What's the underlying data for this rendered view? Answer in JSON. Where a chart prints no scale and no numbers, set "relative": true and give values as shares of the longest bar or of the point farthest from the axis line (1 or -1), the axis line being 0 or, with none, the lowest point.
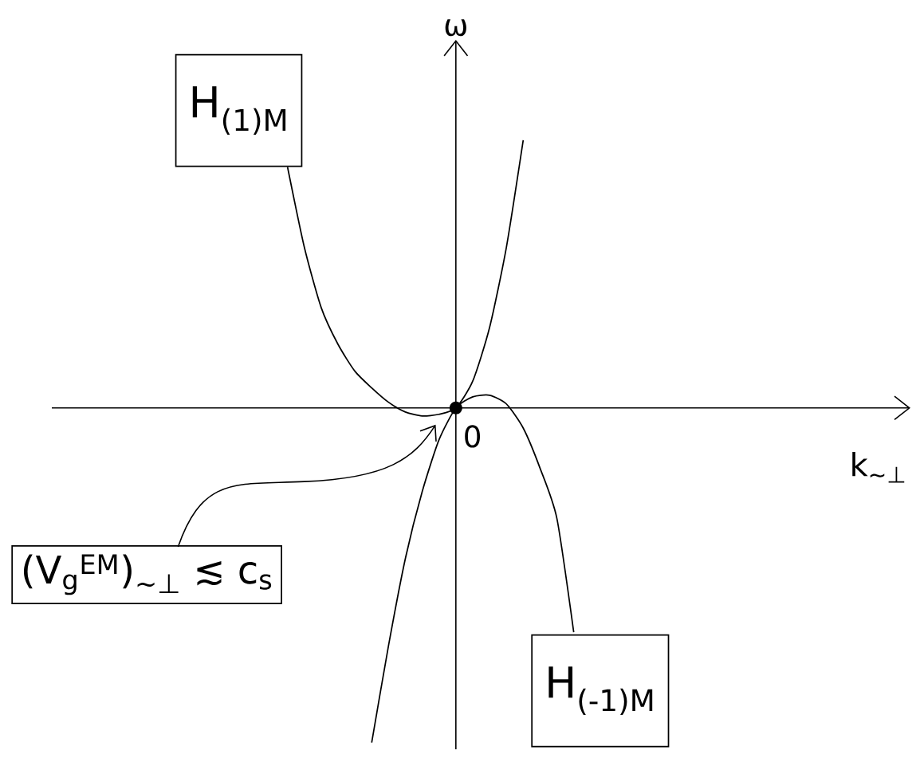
{
  "chart_data": {
    "type": "line",
    "relative": true,
    "xlabel": "k$_{∼⊥}$",
    "ylabel": "ω",
    "categories": [
      null,
      null,
      null,
      null,
      null,
      null,
      null,
      null,
      null,
      null,
      null,
      null,
      null,
      null,
      null,
      null,
      null,
      null,
      null,
      null,
      null,
      null,
      null,
      null,
      null,
      null,
      null,
      null,
      null,
      null,
      null,
      null,
      null,
      null,
      null,
      null,
      null,
      null,
      null,
      null,
      null,
      null,
      null,
      null,
      null,
      null,
      null,
      null,
      null,
      null,
      null,
      null
    ],
    "series": [
      {
        "name": "H$_{(1)M}$",
        "color": "#000000",
        "values": [
          null,
          null,
          null,
          null,
          null,
          null,
          null,
          null,
          null,
          null,
          null,
          null,
          null,
          null,
          0.72,
          0.48,
          0.3,
          0.19,
          0.11,
          0.06,
          0.017,
          -0.012,
          -0.024,
          -0.019,
          0,
          0.08,
          0.24,
          0.48,
          0.8,
          null,
          null,
          null,
          null,
          null,
          null,
          null,
          null,
          null,
          null,
          null,
          null,
          null,
          null,
          null,
          null,
          null,
          null,
          null,
          null,
          null,
          null,
          null
        ]
      },
      {
        "name": "H$_{(-1)M}$",
        "color": "#000000",
        "values": [
          null,
          null,
          null,
          null,
          null,
          null,
          null,
          null,
          null,
          null,
          null,
          null,
          null,
          null,
          null,
          null,
          null,
          null,
          null,
          -1.0,
          -0.71,
          -0.45,
          -0.25,
          -0.095,
          0,
          0.033,
          0.038,
          0.012,
          -0.06,
          -0.18,
          -0.33,
          -0.67,
          null,
          null,
          null,
          null,
          null,
          null,
          null,
          null,
          null,
          null,
          null,
          null,
          null,
          null,
          null,
          null,
          null,
          null,
          null,
          null
        ]
      }
    ],
    "annotations": [
      "0",
      "(V$_{g}$$^{EM}$)$_{∼⊥}$ ≲ c$_{s}$"
    ]
  }
}
